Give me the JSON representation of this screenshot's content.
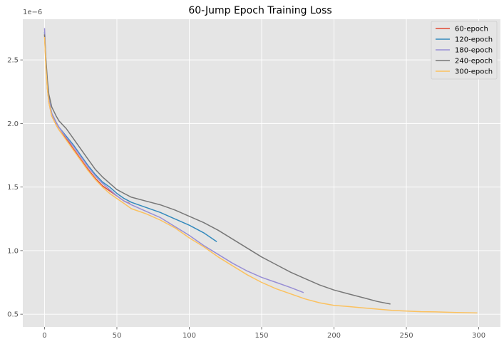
{
  "chart_data": {
    "type": "line",
    "title": "60-Jump Epoch Training Loss",
    "xlabel": "",
    "ylabel": "",
    "y_offset_label": "1e−6",
    "xlim": [
      -15,
      315
    ],
    "ylim": [
      0.4,
      2.82
    ],
    "x_ticks": [
      0,
      50,
      100,
      150,
      200,
      250,
      300
    ],
    "y_ticks": [
      0.5,
      1.0,
      1.5,
      2.0,
      2.5
    ],
    "y_tick_labels": [
      "0.5",
      "1.0",
      "1.5",
      "2.0",
      "2.5"
    ],
    "grid": true,
    "legend_position": "upper-right",
    "colors": {
      "background": "#e5e5e5",
      "grid": "#ffffff"
    },
    "series": [
      {
        "name": "60-epoch",
        "color": "#e24a33",
        "x": [
          0,
          1,
          2,
          3,
          5,
          8,
          10,
          15,
          20,
          25,
          30,
          35,
          40,
          45,
          50,
          55,
          59
        ],
        "y": [
          2.7,
          2.45,
          2.28,
          2.17,
          2.06,
          1.99,
          1.95,
          1.88,
          1.8,
          1.72,
          1.64,
          1.57,
          1.51,
          1.47,
          1.43,
          1.39,
          1.37
        ]
      },
      {
        "name": "120-epoch",
        "color": "#348abd",
        "x": [
          0,
          1,
          2,
          3,
          5,
          8,
          10,
          15,
          20,
          25,
          30,
          35,
          40,
          45,
          50,
          55,
          60,
          70,
          80,
          90,
          100,
          110,
          119
        ],
        "y": [
          2.72,
          2.47,
          2.3,
          2.19,
          2.08,
          2.01,
          1.97,
          1.9,
          1.83,
          1.75,
          1.67,
          1.6,
          1.54,
          1.5,
          1.45,
          1.41,
          1.38,
          1.34,
          1.3,
          1.25,
          1.2,
          1.14,
          1.07
        ]
      },
      {
        "name": "180-epoch",
        "color": "#988ed5",
        "x": [
          0,
          1,
          2,
          3,
          5,
          8,
          10,
          15,
          20,
          25,
          30,
          35,
          40,
          45,
          50,
          55,
          60,
          70,
          80,
          90,
          100,
          110,
          120,
          130,
          140,
          150,
          160,
          170,
          179
        ],
        "y": [
          2.75,
          2.48,
          2.3,
          2.19,
          2.08,
          2.01,
          1.97,
          1.89,
          1.82,
          1.74,
          1.66,
          1.59,
          1.53,
          1.48,
          1.43,
          1.39,
          1.36,
          1.31,
          1.26,
          1.19,
          1.12,
          1.04,
          0.97,
          0.9,
          0.84,
          0.79,
          0.75,
          0.71,
          0.67
        ]
      },
      {
        "name": "240-epoch",
        "color": "#777777",
        "x": [
          0,
          1,
          2,
          3,
          5,
          8,
          10,
          15,
          20,
          25,
          30,
          35,
          40,
          45,
          50,
          55,
          60,
          70,
          80,
          90,
          100,
          110,
          120,
          130,
          140,
          150,
          160,
          170,
          180,
          190,
          200,
          210,
          220,
          230,
          239
        ],
        "y": [
          2.7,
          2.5,
          2.34,
          2.23,
          2.13,
          2.06,
          2.02,
          1.96,
          1.88,
          1.8,
          1.72,
          1.64,
          1.58,
          1.53,
          1.48,
          1.45,
          1.42,
          1.39,
          1.36,
          1.32,
          1.27,
          1.22,
          1.16,
          1.09,
          1.02,
          0.95,
          0.89,
          0.83,
          0.78,
          0.73,
          0.69,
          0.66,
          0.63,
          0.6,
          0.58
        ]
      },
      {
        "name": "300-epoch",
        "color": "#fbc15e",
        "x": [
          0,
          1,
          2,
          3,
          5,
          8,
          10,
          15,
          20,
          25,
          30,
          35,
          40,
          45,
          50,
          55,
          60,
          70,
          80,
          90,
          100,
          110,
          120,
          130,
          140,
          150,
          160,
          170,
          180,
          190,
          200,
          210,
          220,
          230,
          240,
          250,
          260,
          270,
          280,
          290,
          299
        ],
        "y": [
          2.68,
          2.43,
          2.27,
          2.17,
          2.06,
          1.99,
          1.95,
          1.87,
          1.79,
          1.71,
          1.63,
          1.56,
          1.5,
          1.45,
          1.41,
          1.37,
          1.33,
          1.29,
          1.24,
          1.18,
          1.1,
          1.03,
          0.95,
          0.88,
          0.81,
          0.75,
          0.7,
          0.66,
          0.62,
          0.59,
          0.57,
          0.56,
          0.55,
          0.54,
          0.53,
          0.525,
          0.52,
          0.518,
          0.515,
          0.512,
          0.51
        ]
      }
    ]
  }
}
